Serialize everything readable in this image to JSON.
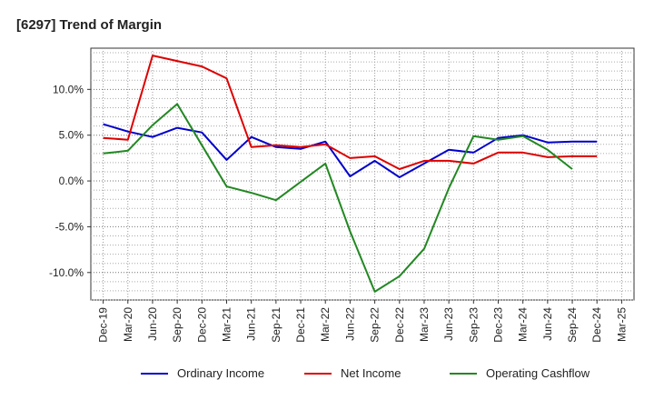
{
  "chart_data": {
    "type": "line",
    "title": "[6297]  Trend of Margin",
    "xlabel": "",
    "ylabel": "",
    "ylim": [
      -13,
      14.5
    ],
    "yticks": [
      10,
      5,
      0,
      -5,
      -10
    ],
    "ytick_labels": [
      "10.0%",
      "5.0%",
      "0.0%",
      "-5.0%",
      "-10.0%"
    ],
    "categories": [
      "Dec-19",
      "Mar-20",
      "Jun-20",
      "Sep-20",
      "Dec-20",
      "Mar-21",
      "Jun-21",
      "Sep-21",
      "Dec-21",
      "Mar-22",
      "Jun-22",
      "Sep-22",
      "Dec-22",
      "Mar-23",
      "Jun-23",
      "Sep-23",
      "Dec-23",
      "Mar-24",
      "Jun-24",
      "Sep-24",
      "Dec-24",
      "Mar-25"
    ],
    "grid": true,
    "legend_position": "bottom",
    "series": [
      {
        "name": "Ordinary Income",
        "color": "#0000cc",
        "values": [
          6.2,
          5.4,
          4.8,
          5.8,
          5.3,
          2.3,
          4.8,
          3.7,
          3.5,
          4.3,
          0.5,
          2.2,
          0.4,
          1.9,
          3.4,
          3.1,
          4.7,
          5.0,
          4.2,
          4.3,
          4.3,
          null
        ]
      },
      {
        "name": "Net Income",
        "color": "#dd0000",
        "values": [
          4.7,
          4.5,
          13.7,
          13.1,
          12.5,
          11.2,
          3.7,
          3.9,
          3.7,
          4.0,
          2.5,
          2.7,
          1.3,
          2.2,
          2.2,
          1.9,
          3.1,
          3.1,
          2.6,
          2.7,
          2.7,
          null
        ]
      },
      {
        "name": "Operating Cashflow",
        "color": "#228822",
        "values": [
          3.0,
          3.3,
          6.1,
          8.4,
          3.9,
          -0.6,
          -1.3,
          -2.1,
          -0.1,
          1.9,
          -5.5,
          -12.1,
          -10.4,
          -7.4,
          -0.8,
          4.9,
          4.5,
          4.9,
          3.4,
          1.3,
          null,
          null
        ]
      }
    ]
  }
}
